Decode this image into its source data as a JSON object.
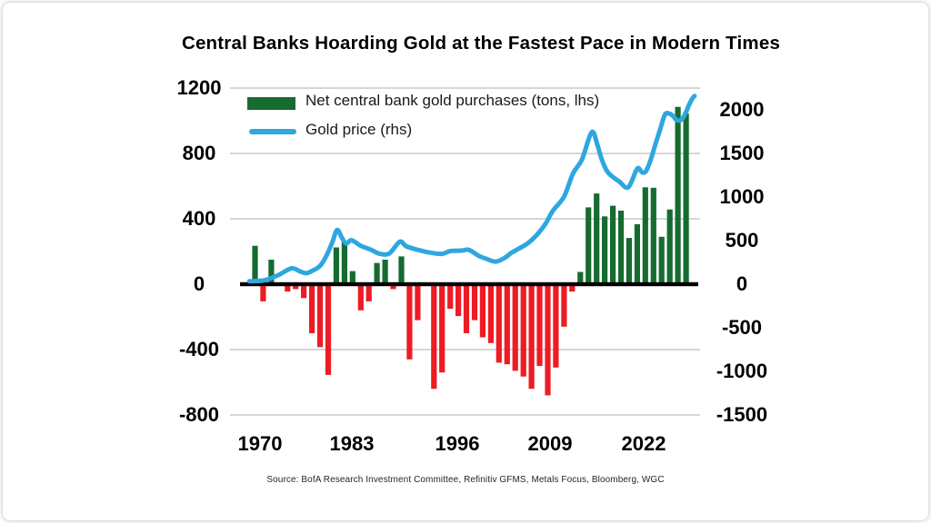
{
  "chart_data": {
    "type": "combo-bar-line",
    "title": "Central Banks Hoarding Gold at the Fastest Pace in Modern Times",
    "source_note": "Source:  BofA Research Investment Committee, Refinitiv GFMS, Metals Focus, Bloomberg, WGC",
    "legend": [
      {
        "label": "Net central bank gold purchases (tons, lhs)",
        "swatch": "bar",
        "color": "#166b30"
      },
      {
        "label": "Gold price (rhs)",
        "swatch": "line",
        "color": "#2ea7e0"
      }
    ],
    "colors": {
      "bar_positive": "#166b30",
      "bar_negative": "#ed1c24",
      "line": "#2ea7e0",
      "gridline": "#c9c9c9",
      "zero_line": "#000000"
    },
    "axes": {
      "left": {
        "label_hint": "tons",
        "ticks": [
          1200,
          800,
          400,
          0,
          -400,
          -800
        ],
        "range": [
          -900,
          1250
        ]
      },
      "right": {
        "label_hint": "gold price",
        "ticks": [
          2000,
          1500,
          1000,
          500,
          0,
          -500,
          -1000,
          -1500
        ],
        "range": [
          -1688,
          2344
        ]
      },
      "x": {
        "tick_labels": [
          "1970",
          "1983",
          "1996",
          "2009",
          "2022"
        ]
      }
    },
    "gridline_values_lhs": [
      1200,
      800,
      400,
      -400,
      -800
    ],
    "bar_series": {
      "name": "Net central bank gold purchases (tons, lhs)",
      "axis": "lhs",
      "years": [
        1970,
        1971,
        1972,
        1973,
        1974,
        1975,
        1976,
        1977,
        1978,
        1979,
        1980,
        1981,
        1982,
        1983,
        1984,
        1985,
        1986,
        1987,
        1988,
        1989,
        1990,
        1991,
        1992,
        1993,
        1994,
        1995,
        1996,
        1997,
        1998,
        1999,
        2000,
        2001,
        2002,
        2003,
        2004,
        2005,
        2006,
        2007,
        2008,
        2009,
        2010,
        2011,
        2012,
        2013,
        2014,
        2015,
        2016,
        2017,
        2018,
        2019,
        2020,
        2021,
        2022,
        2023,
        2024
      ],
      "values": [
        235,
        -105,
        150,
        0,
        -45,
        -30,
        -85,
        -300,
        -385,
        -555,
        225,
        260,
        80,
        -160,
        -105,
        130,
        150,
        -30,
        170,
        -460,
        -220,
        0,
        -640,
        -540,
        -150,
        -195,
        -300,
        -220,
        -325,
        -360,
        -480,
        -490,
        -530,
        -565,
        -640,
        -500,
        -680,
        -510,
        -260,
        -45,
        75,
        470,
        555,
        415,
        480,
        450,
        283,
        367,
        593,
        590,
        290,
        457,
        1085,
        1045,
        null
      ]
    },
    "line_series": {
      "name": "Gold price (rhs)",
      "axis": "rhs",
      "points": [
        [
          1969.3,
          33
        ],
        [
          1970,
          36
        ],
        [
          1971,
          42
        ],
        [
          1972,
          70
        ],
        [
          1973,
          110
        ],
        [
          1974.5,
          182
        ],
        [
          1975.5,
          148
        ],
        [
          1976.3,
          126
        ],
        [
          1977,
          152
        ],
        [
          1978,
          210
        ],
        [
          1978.8,
          330
        ],
        [
          1979.5,
          480
        ],
        [
          1980.1,
          622
        ],
        [
          1980.7,
          530
        ],
        [
          1981.2,
          468
        ],
        [
          1981.8,
          505
        ],
        [
          1982.4,
          478
        ],
        [
          1983,
          440
        ],
        [
          1984.2,
          398
        ],
        [
          1985.3,
          350
        ],
        [
          1986.5,
          352
        ],
        [
          1987.8,
          487
        ],
        [
          1988.6,
          435
        ],
        [
          1990,
          395
        ],
        [
          1991.5,
          362
        ],
        [
          1993,
          348
        ],
        [
          1994,
          380
        ],
        [
          1995.5,
          386
        ],
        [
          1996.3,
          394
        ],
        [
          1997.5,
          326
        ],
        [
          1998.5,
          290
        ],
        [
          1999.6,
          258
        ],
        [
          2000.7,
          302
        ],
        [
          2001.5,
          358
        ],
        [
          2002.4,
          406
        ],
        [
          2003.5,
          466
        ],
        [
          2004.6,
          560
        ],
        [
          2005.7,
          690
        ],
        [
          2006.6,
          840
        ],
        [
          2008,
          1005
        ],
        [
          2009.1,
          1270
        ],
        [
          2010.2,
          1430
        ],
        [
          2011.4,
          1745
        ],
        [
          2012.1,
          1598
        ],
        [
          2012.6,
          1442
        ],
        [
          2013.2,
          1310
        ],
        [
          2013.8,
          1245
        ],
        [
          2014.8,
          1177
        ],
        [
          2015.9,
          1112
        ],
        [
          2017,
          1325
        ],
        [
          2017.6,
          1282
        ],
        [
          2018.1,
          1300
        ],
        [
          2018.7,
          1440
        ],
        [
          2019.2,
          1595
        ],
        [
          2019.8,
          1770
        ],
        [
          2020.4,
          1945
        ],
        [
          2020.9,
          1958
        ],
        [
          2021.4,
          1930
        ],
        [
          2021.8,
          1885
        ],
        [
          2022.2,
          1878
        ],
        [
          2022.6,
          1905
        ],
        [
          2023,
          1976
        ],
        [
          2023.4,
          2063
        ],
        [
          2023.8,
          2133
        ],
        [
          2024.05,
          2158
        ]
      ]
    }
  }
}
